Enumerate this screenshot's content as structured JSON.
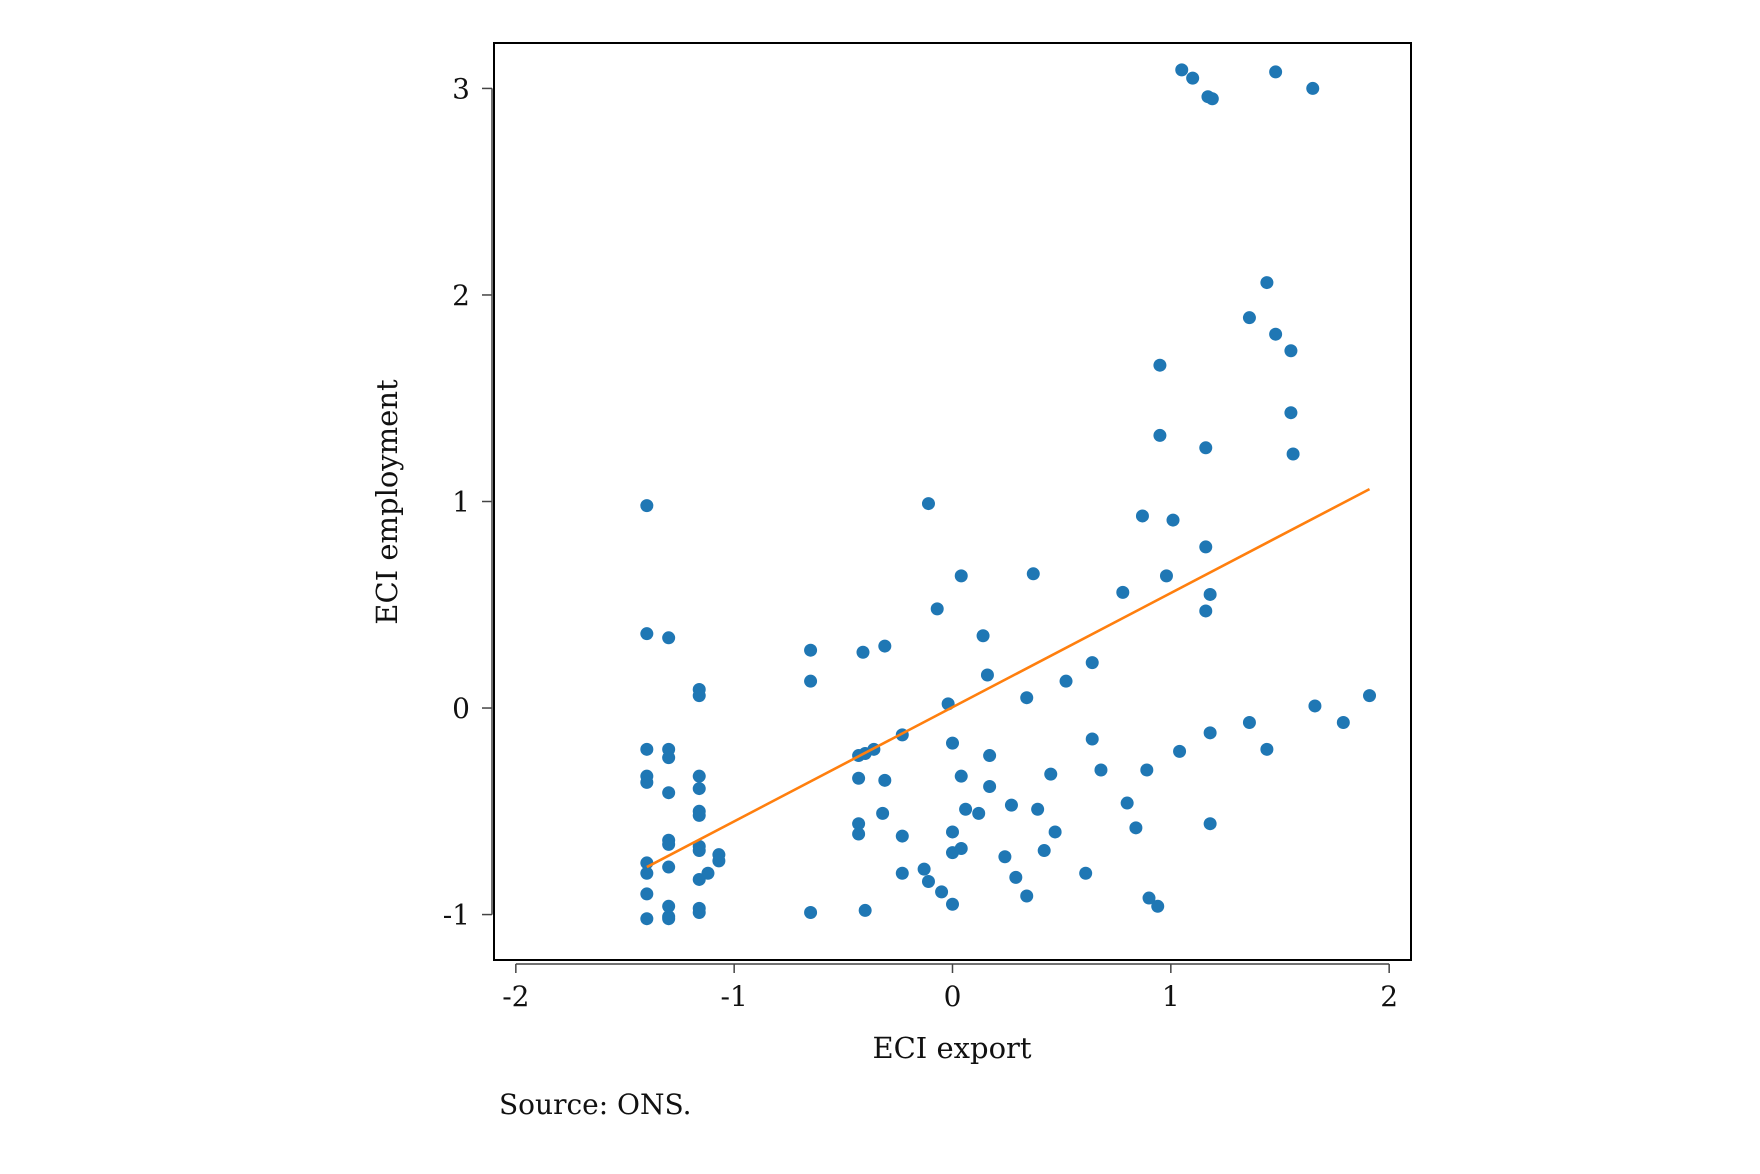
{
  "chart_data": {
    "type": "scatter",
    "xlabel": "ECI export",
    "ylabel": "ECI employment",
    "xlim": [
      -2.1,
      2.1
    ],
    "ylim": [
      -1.22,
      3.22
    ],
    "xticks": [
      -2,
      -1,
      0,
      1,
      2
    ],
    "xtick_labels": [
      "-2",
      "-1",
      "0",
      "1",
      "2"
    ],
    "yticks": [
      -1,
      0,
      1,
      2,
      3
    ],
    "ytick_labels": [
      "-1",
      "0",
      "1",
      "2",
      "3"
    ],
    "grid": false,
    "legend": "none",
    "source": "Source: ONS.",
    "colors": {
      "points": "#1f77b4",
      "fit": "#ff7f0e",
      "frame": "#000000"
    },
    "series": [
      {
        "kind": "points",
        "points": [
          [
            1.05,
            3.09
          ],
          [
            1.1,
            3.05
          ],
          [
            1.17,
            2.96
          ],
          [
            1.19,
            2.95
          ],
          [
            1.48,
            3.08
          ],
          [
            1.65,
            3.0
          ],
          [
            1.44,
            2.06
          ],
          [
            1.36,
            1.89
          ],
          [
            1.48,
            1.81
          ],
          [
            1.55,
            1.73
          ],
          [
            1.55,
            1.43
          ],
          [
            1.56,
            1.23
          ],
          [
            0.95,
            1.66
          ],
          [
            0.95,
            1.32
          ],
          [
            1.16,
            1.26
          ],
          [
            0.87,
            0.93
          ],
          [
            1.01,
            0.91
          ],
          [
            1.16,
            0.78
          ],
          [
            0.98,
            0.64
          ],
          [
            1.18,
            0.55
          ],
          [
            1.16,
            0.47
          ],
          [
            0.78,
            0.56
          ],
          [
            0.64,
            0.22
          ],
          [
            0.52,
            0.13
          ],
          [
            0.37,
            0.65
          ],
          [
            0.34,
            0.05
          ],
          [
            -1.4,
            0.98
          ],
          [
            -0.11,
            0.99
          ],
          [
            0.04,
            0.64
          ],
          [
            -0.07,
            0.48
          ],
          [
            0.14,
            0.35
          ],
          [
            0.16,
            0.16
          ],
          [
            -0.02,
            0.02
          ],
          [
            -0.31,
            0.3
          ],
          [
            -0.41,
            0.27
          ],
          [
            -0.65,
            0.28
          ],
          [
            -0.65,
            0.13
          ],
          [
            -1.4,
            0.36
          ],
          [
            -1.3,
            0.34
          ],
          [
            -1.16,
            0.09
          ],
          [
            -1.16,
            0.06
          ],
          [
            1.66,
            0.01
          ],
          [
            1.79,
            -0.07
          ],
          [
            1.91,
            0.06
          ],
          [
            1.36,
            -0.07
          ],
          [
            1.44,
            -0.2
          ],
          [
            1.18,
            -0.12
          ],
          [
            1.04,
            -0.21
          ],
          [
            1.18,
            -0.56
          ],
          [
            -1.4,
            -0.2
          ],
          [
            -1.3,
            -0.2
          ],
          [
            -1.3,
            -0.24
          ],
          [
            -1.4,
            -0.33
          ],
          [
            -1.4,
            -0.36
          ],
          [
            -1.3,
            -0.41
          ],
          [
            -1.16,
            -0.33
          ],
          [
            -1.16,
            -0.39
          ],
          [
            -1.16,
            -0.5
          ],
          [
            -1.16,
            -0.52
          ],
          [
            -1.3,
            -0.64
          ],
          [
            -1.3,
            -0.66
          ],
          [
            -1.16,
            -0.67
          ],
          [
            -1.16,
            -0.69
          ],
          [
            -1.4,
            -0.75
          ],
          [
            -1.3,
            -0.77
          ],
          [
            -1.4,
            -0.8
          ],
          [
            -1.16,
            -0.83
          ],
          [
            -1.12,
            -0.8
          ],
          [
            -1.07,
            -0.71
          ],
          [
            -1.07,
            -0.74
          ],
          [
            -1.4,
            -0.9
          ],
          [
            -1.3,
            -0.96
          ],
          [
            -1.16,
            -0.97
          ],
          [
            -1.16,
            -0.99
          ],
          [
            -1.4,
            -1.02
          ],
          [
            -1.3,
            -1.01
          ],
          [
            -1.3,
            -1.02
          ],
          [
            -0.65,
            -0.99
          ],
          [
            -0.4,
            -0.98
          ],
          [
            -0.43,
            -0.23
          ],
          [
            -0.4,
            -0.22
          ],
          [
            -0.36,
            -0.2
          ],
          [
            -0.23,
            -0.13
          ],
          [
            -0.43,
            -0.34
          ],
          [
            -0.31,
            -0.35
          ],
          [
            -0.43,
            -0.56
          ],
          [
            -0.43,
            -0.61
          ],
          [
            -0.32,
            -0.51
          ],
          [
            -0.23,
            -0.62
          ],
          [
            -0.23,
            -0.8
          ],
          [
            -0.13,
            -0.78
          ],
          [
            -0.11,
            -0.84
          ],
          [
            -0.05,
            -0.89
          ],
          [
            0.0,
            -0.95
          ],
          [
            0.0,
            -0.6
          ],
          [
            0.0,
            -0.7
          ],
          [
            0.04,
            -0.68
          ],
          [
            0.0,
            -0.17
          ],
          [
            0.04,
            -0.33
          ],
          [
            0.06,
            -0.49
          ],
          [
            0.12,
            -0.51
          ],
          [
            0.17,
            -0.23
          ],
          [
            0.17,
            -0.38
          ],
          [
            0.24,
            -0.72
          ],
          [
            0.27,
            -0.47
          ],
          [
            0.29,
            -0.82
          ],
          [
            0.34,
            -0.91
          ],
          [
            0.39,
            -0.49
          ],
          [
            0.42,
            -0.69
          ],
          [
            0.45,
            -0.32
          ],
          [
            0.47,
            -0.6
          ],
          [
            0.61,
            -0.8
          ],
          [
            0.64,
            -0.15
          ],
          [
            0.68,
            -0.3
          ],
          [
            0.8,
            -0.46
          ],
          [
            0.84,
            -0.58
          ],
          [
            0.89,
            -0.3
          ],
          [
            0.9,
            -0.92
          ],
          [
            0.94,
            -0.96
          ]
        ]
      },
      {
        "kind": "fit-line",
        "points": [
          [
            -1.4,
            -0.77
          ],
          [
            1.91,
            1.06
          ]
        ]
      }
    ]
  }
}
